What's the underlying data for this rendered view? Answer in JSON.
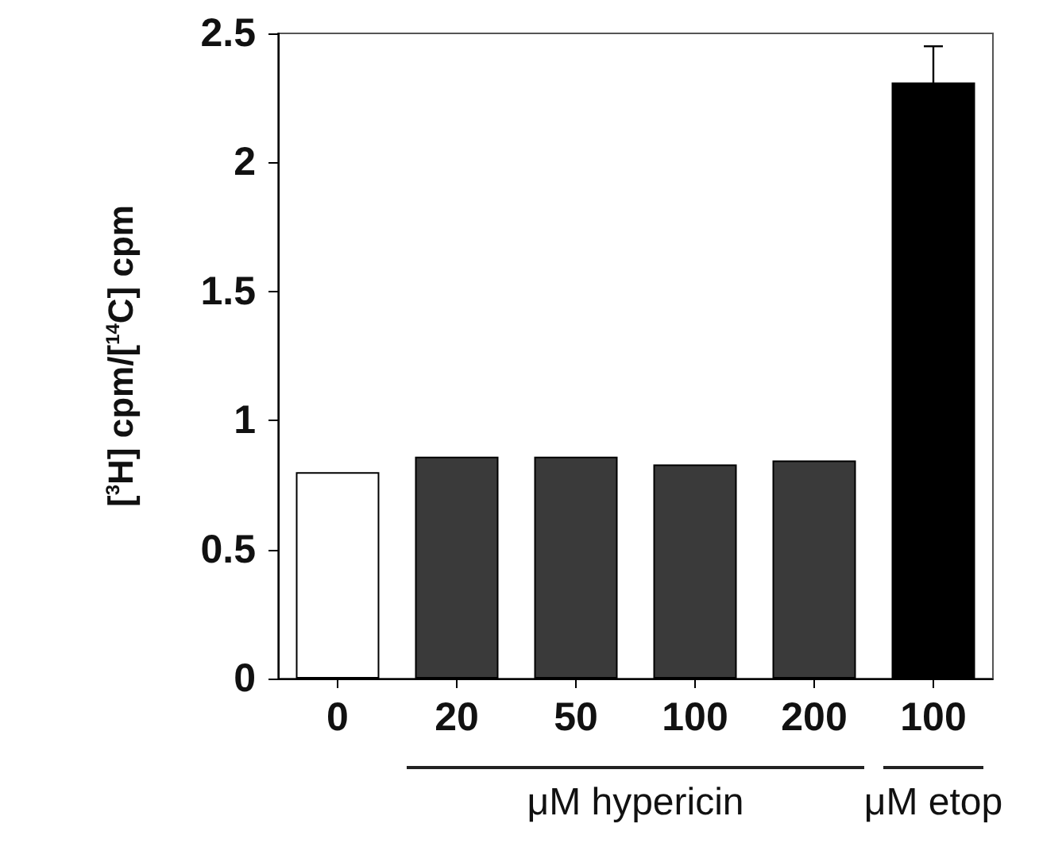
{
  "chart_data": {
    "type": "bar",
    "ylabel": "[$^{3}$H] cpm/[$^{14}$C] cpm",
    "categories": [
      "0",
      "20",
      "50",
      "100",
      "200",
      "100"
    ],
    "values": [
      0.8,
      0.86,
      0.86,
      0.83,
      0.845,
      2.31
    ],
    "colors": [
      "#ffffff",
      "#3a3a3a",
      "#3a3a3a",
      "#3a3a3a",
      "#3a3a3a",
      "#000000"
    ],
    "errors": [
      null,
      null,
      null,
      null,
      null,
      0.14
    ],
    "ylim": [
      0,
      2.5
    ],
    "yticks": [
      0,
      0.5,
      1,
      1.5,
      2,
      2.5
    ],
    "annotations": [
      "μM hypericin",
      "μM etop"
    ],
    "grid": false
  }
}
